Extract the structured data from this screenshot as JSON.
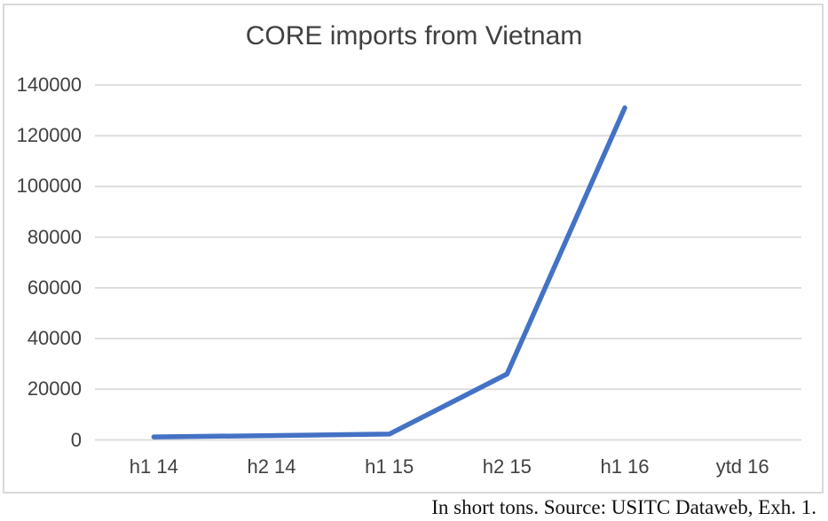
{
  "caption": "In short tons. Source: USITC Dataweb, Exh. 1.",
  "chart_data": {
    "type": "line",
    "title": "CORE imports from Vietnam",
    "categories": [
      "h1 14",
      "h2 14",
      "h1 15",
      "h2 15",
      "h1 16",
      "ytd 16"
    ],
    "series": [
      {
        "name": "CORE imports from Vietnam",
        "values": [
          1200,
          1700,
          2300,
          26000,
          131000,
          null
        ]
      }
    ],
    "xlabel": "",
    "ylabel": "",
    "ylim": [
      0,
      140000
    ],
    "ytick_step": 20000,
    "ytick_labels": [
      "0",
      "20000",
      "40000",
      "60000",
      "80000",
      "100000",
      "120000",
      "140000"
    ],
    "grid": "horizontal-only",
    "legend_position": "none",
    "colors": {
      "series_line": "#4472C4",
      "gridline": "#D9D9D9",
      "frame_border": "#D9D9D9",
      "axis_text": "#404040",
      "title_text": "#404040",
      "caption_text": "#111111",
      "background": "#FFFFFF"
    }
  }
}
